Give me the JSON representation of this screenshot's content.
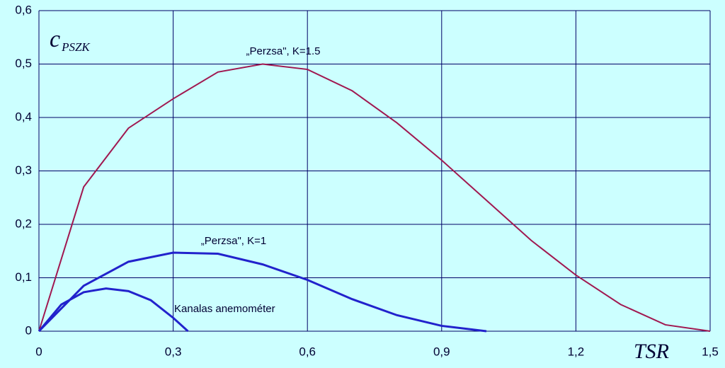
{
  "chart_data": {
    "type": "line",
    "xlim": [
      0,
      1.5
    ],
    "ylim": [
      0,
      0.6
    ],
    "xticks": [
      0,
      {
        "value": 0.3,
        "label": "0,3"
      },
      {
        "value": 0.6,
        "label": "0,6"
      },
      {
        "value": 0.9,
        "label": "0,9"
      },
      {
        "value": 1.2,
        "label": "1,2"
      },
      {
        "value": 1.5,
        "label": "1,5"
      }
    ],
    "yticks": [
      0,
      {
        "value": 0.1,
        "label": "0,1"
      },
      {
        "value": 0.2,
        "label": "0,2"
      },
      {
        "value": 0.3,
        "label": "0,3"
      },
      {
        "value": 0.4,
        "label": "0,4"
      },
      {
        "value": 0.5,
        "label": "0,5"
      },
      {
        "value": 0.6,
        "label": "0,6"
      }
    ],
    "grid": true,
    "y_label": "c",
    "y_label_sub": "PSZK",
    "x_label": "TSR",
    "series": [
      {
        "name": "„Perzsa\", K=1.5",
        "color": "#a01850",
        "width": 2,
        "x": [
          0,
          0.1,
          0.2,
          0.3,
          0.4,
          0.5,
          0.6,
          0.7,
          0.8,
          0.9,
          1.0,
          1.1,
          1.2,
          1.3,
          1.4,
          1.5
        ],
        "values": [
          0,
          0.27,
          0.38,
          0.435,
          0.485,
          0.5,
          0.49,
          0.45,
          0.39,
          0.32,
          0.245,
          0.17,
          0.105,
          0.05,
          0.012,
          0
        ]
      },
      {
        "name": "„Perzsa\", K=1",
        "color": "#2222cc",
        "width": 3,
        "x": [
          0,
          0.1,
          0.2,
          0.3,
          0.4,
          0.5,
          0.6,
          0.7,
          0.8,
          0.9,
          1.0
        ],
        "values": [
          0,
          0.085,
          0.13,
          0.147,
          0.145,
          0.125,
          0.096,
          0.06,
          0.03,
          0.01,
          0
        ]
      },
      {
        "name": "Kanalas anemométer",
        "color": "#2222cc",
        "width": 3,
        "x": [
          0,
          0.05,
          0.1,
          0.15,
          0.2,
          0.25,
          0.3,
          0.333
        ],
        "values": [
          0,
          0.05,
          0.073,
          0.08,
          0.075,
          0.058,
          0.025,
          0
        ]
      }
    ]
  }
}
